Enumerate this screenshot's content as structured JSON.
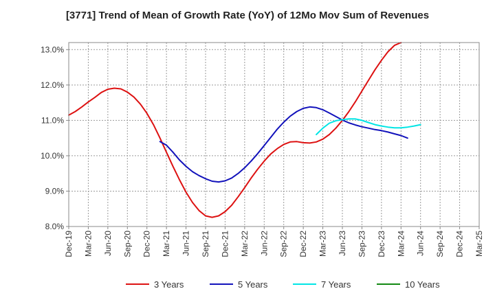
{
  "chart_data": {
    "type": "line",
    "title": "[3771]  Trend of Mean of Growth Rate (YoY) of 12Mo Mov Sum of Revenues",
    "xlabel": "",
    "ylabel": "",
    "ylim": [
      8.0,
      13.2
    ],
    "yticks": [
      8.0,
      9.0,
      10.0,
      11.0,
      12.0,
      13.0
    ],
    "ytick_labels": [
      "8.0%",
      "9.0%",
      "10.0%",
      "11.0%",
      "12.0%",
      "13.0%"
    ],
    "x_start": "Dec-19",
    "xtick_labels": [
      "Dec-19",
      "Mar-20",
      "Jun-20",
      "Sep-20",
      "Dec-20",
      "Mar-21",
      "Jun-21",
      "Sep-21",
      "Dec-21",
      "Mar-22",
      "Jun-22",
      "Sep-22",
      "Dec-22",
      "Mar-23",
      "Jun-23",
      "Sep-23",
      "Dec-23",
      "Mar-24",
      "Jun-24",
      "Sep-24",
      "Dec-24",
      "Mar-25"
    ],
    "grid": true,
    "legend_position": "bottom",
    "series": [
      {
        "name": "3 Years",
        "color": "#dd1111",
        "start_index": 0,
        "values": [
          11.15,
          11.25,
          11.38,
          11.52,
          11.65,
          11.79,
          11.88,
          11.91,
          11.89,
          11.8,
          11.66,
          11.46,
          11.2,
          10.88,
          10.5,
          10.1,
          9.7,
          9.32,
          8.97,
          8.68,
          8.45,
          8.3,
          8.26,
          8.3,
          8.42,
          8.6,
          8.84,
          9.1,
          9.37,
          9.62,
          9.85,
          10.05,
          10.2,
          10.32,
          10.39,
          10.4,
          10.37,
          10.36,
          10.39,
          10.47,
          10.6,
          10.78,
          11.0,
          11.25,
          11.53,
          11.83,
          12.13,
          12.43,
          12.7,
          12.94,
          13.12,
          13.2
        ]
      },
      {
        "name": "5 Years",
        "color": "#1111bb",
        "start_index": 14,
        "values": [
          10.4,
          10.3,
          10.1,
          9.88,
          9.7,
          9.55,
          9.44,
          9.35,
          9.28,
          9.26,
          9.29,
          9.37,
          9.5,
          9.66,
          9.85,
          10.06,
          10.29,
          10.52,
          10.75,
          10.95,
          11.12,
          11.25,
          11.34,
          11.38,
          11.36,
          11.3,
          11.21,
          11.11,
          11.01,
          10.93,
          10.87,
          10.82,
          10.78,
          10.74,
          10.71,
          10.67,
          10.62,
          10.57,
          10.5
        ]
      },
      {
        "name": "7 Years",
        "color": "#00e5e5",
        "start_index": 38,
        "values": [
          10.6,
          10.78,
          10.92,
          10.99,
          11.02,
          11.04,
          11.04,
          11.0,
          10.94,
          10.88,
          10.84,
          10.81,
          10.79,
          10.79,
          10.81,
          10.84,
          10.88
        ]
      },
      {
        "name": "10 Years",
        "color": "#118811",
        "start_index": 0,
        "values": []
      }
    ]
  }
}
